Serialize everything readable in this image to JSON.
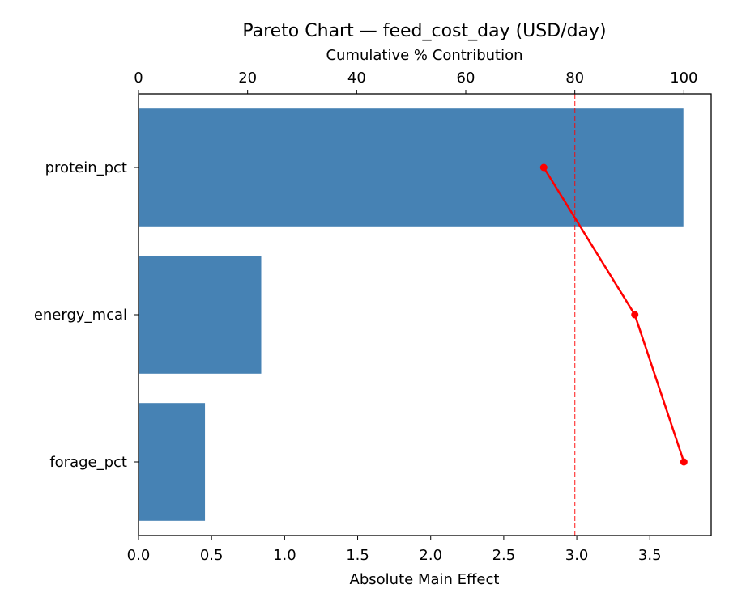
{
  "chart_data": {
    "type": "bar",
    "orientation": "horizontal",
    "title": "Pareto Chart — feed_cost_day (USD/day)",
    "xlabel": "Absolute Main Effect",
    "x2label": "Cumulative % Contribution",
    "categories": [
      "protein_pct",
      "energy_mcal",
      "forage_pct"
    ],
    "values": [
      3.73,
      0.84,
      0.455
    ],
    "cumulative_pct": [
      74.3,
      91.0,
      100.0
    ],
    "xlim": [
      0,
      3.92
    ],
    "x2lim": [
      0,
      105
    ],
    "xticks": [
      "0.0",
      "0.5",
      "1.0",
      "1.5",
      "2.0",
      "2.5",
      "3.0",
      "3.5"
    ],
    "x2ticks": [
      "0",
      "20",
      "40",
      "60",
      "80",
      "100"
    ],
    "threshold_pct": 80,
    "grid": false,
    "colors": {
      "bar": "#4682b4",
      "cumulative": "#ff0000",
      "threshold": "#ff0000"
    }
  }
}
